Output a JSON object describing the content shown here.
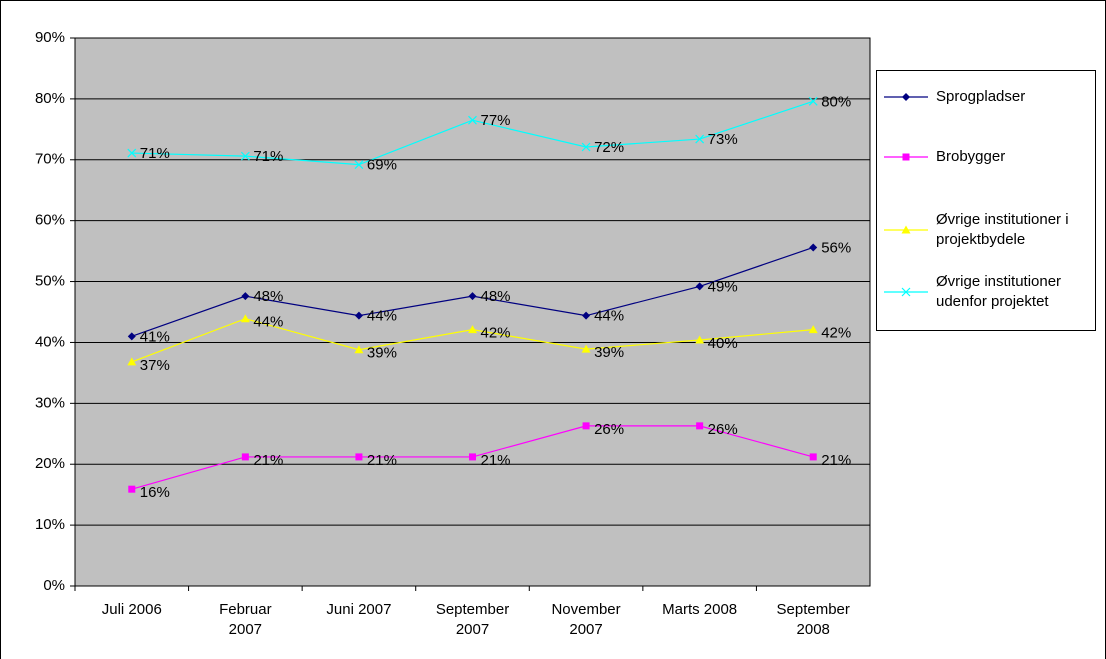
{
  "chart_data": {
    "type": "line",
    "categories": [
      "Juli 2006",
      "Februar 2007",
      "Juni 2007",
      "September 2007",
      "November 2007",
      "Marts 2008",
      "September 2008"
    ],
    "series": [
      {
        "name": "Sprogpladser",
        "color": "#000080",
        "marker": "diamond",
        "values": [
          41,
          47.6,
          44.4,
          47.6,
          44.4,
          49.2,
          55.6
        ],
        "value_labels": [
          "41%",
          "48%",
          "44%",
          "48%",
          "44%",
          "49%",
          "56%"
        ]
      },
      {
        "name": "Brobygger",
        "color": "#ff00ff",
        "marker": "square",
        "values": [
          15.9,
          21.2,
          21.2,
          21.2,
          26.3,
          26.3,
          21.2
        ],
        "value_labels": [
          "16%",
          "21%",
          "21%",
          "21%",
          "26%",
          "26%",
          "21%"
        ]
      },
      {
        "name": "Øvrige institutioner i projektbydele",
        "color": "#ffff00",
        "marker": "triangle",
        "values": [
          36.8,
          43.9,
          38.8,
          42.1,
          38.9,
          40.4,
          42.1
        ],
        "value_labels": [
          "37%",
          "44%",
          "39%",
          "42%",
          "39%",
          "40%",
          "42%"
        ]
      },
      {
        "name": "Øvrige institutioner udenfor projektet",
        "color": "#00ffff",
        "marker": "x",
        "values": [
          71.1,
          70.6,
          69.2,
          76.5,
          72.1,
          73.4,
          79.6
        ],
        "value_labels": [
          "71%",
          "71%",
          "69%",
          "77%",
          "72%",
          "73%",
          "80%"
        ]
      }
    ],
    "ylim": [
      0,
      90
    ],
    "yticks": [
      {
        "value": 0,
        "label": "0%"
      },
      {
        "value": 10,
        "label": "10%"
      },
      {
        "value": 20,
        "label": "20%"
      },
      {
        "value": 30,
        "label": "30%"
      },
      {
        "value": 40,
        "label": "40%"
      },
      {
        "value": 50,
        "label": "50%"
      },
      {
        "value": 60,
        "label": "60%"
      },
      {
        "value": 70,
        "label": "70%"
      },
      {
        "value": 80,
        "label": "80%"
      },
      {
        "value": 90,
        "label": "90%"
      }
    ],
    "grid": true,
    "legend": "right",
    "plot_background": "#c0c0c0"
  }
}
